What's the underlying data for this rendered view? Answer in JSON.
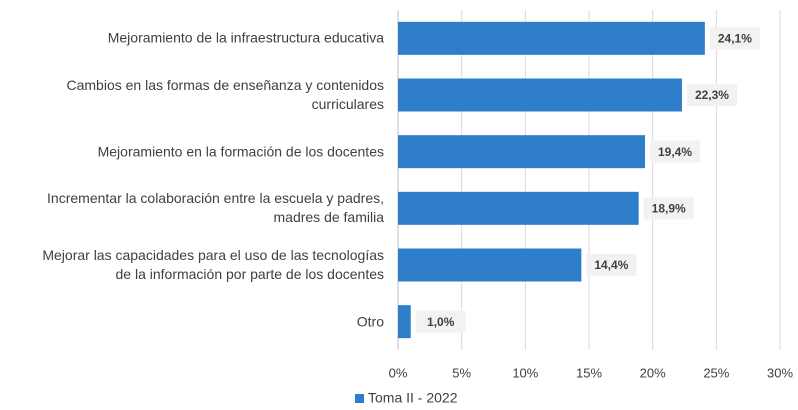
{
  "chart_data": {
    "type": "bar",
    "orientation": "horizontal",
    "categories": [
      "Mejoramiento de la infraestructura educativa",
      "Cambios en las formas de enseñanza y contenidos\ncurriculares",
      "Mejoramiento en la formación de los docentes",
      "Incrementar la colaboración entre la escuela y padres,\nmadres de familia",
      "Mejorar las capacidades para el uso de las tecnologías\nde la información por parte de los docentes",
      "Otro"
    ],
    "series": [
      {
        "name": "Toma II - 2022",
        "color": "#2e7ec9",
        "values": [
          24.1,
          22.3,
          19.4,
          18.9,
          14.4,
          1.0
        ],
        "value_labels": [
          "24,1%",
          "22,3%",
          "19,4%",
          "18,9%",
          "14,4%",
          "1,0%"
        ]
      }
    ],
    "xlim": [
      0,
      30
    ],
    "xticks": [
      {
        "value": 0,
        "label": "0%"
      },
      {
        "value": 5,
        "label": "5%"
      },
      {
        "value": 10,
        "label": "10%"
      },
      {
        "value": 15,
        "label": "15%"
      },
      {
        "value": 20,
        "label": "20%"
      },
      {
        "value": 25,
        "label": "25%"
      },
      {
        "value": 30,
        "label": "30%"
      }
    ],
    "grid": true,
    "legend": "bottom"
  }
}
